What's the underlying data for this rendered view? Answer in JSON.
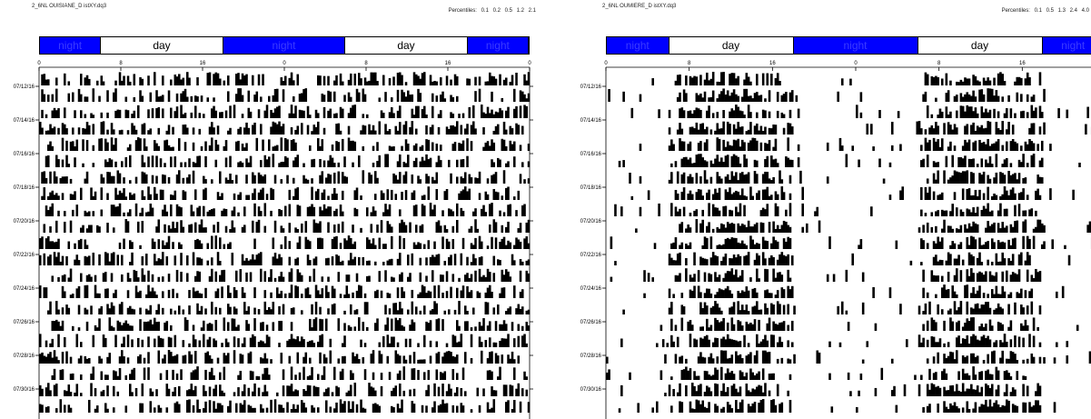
{
  "panels": [
    {
      "file_title": "2_6NL OUISIANE_D istXY.dq3",
      "percentiles_label": "Percentiles:",
      "percentiles": [
        "0.1",
        "0.2",
        "0.5",
        "1.2",
        "2.1"
      ],
      "daynight": [
        {
          "type": "night",
          "label": "night",
          "hours": 6
        },
        {
          "type": "day",
          "label": "day",
          "hours": 12
        },
        {
          "type": "night",
          "label": "night",
          "hours": 12
        },
        {
          "type": "day",
          "label": "day",
          "hours": 12
        },
        {
          "type": "night",
          "label": "night",
          "hours": 6
        }
      ]
    },
    {
      "file_title": "2_6NL OUMIERE_D istXY.dq3",
      "percentiles_label": "Percentiles:",
      "percentiles": [
        "0.1",
        "0.5",
        "1.3",
        "2.4",
        "4.0"
      ],
      "daynight": [
        {
          "type": "night",
          "label": "night",
          "hours": 6
        },
        {
          "type": "day",
          "label": "day",
          "hours": 12
        },
        {
          "type": "night",
          "label": "night",
          "hours": 12
        },
        {
          "type": "day",
          "label": "day",
          "hours": 12
        },
        {
          "type": "night",
          "label": "night",
          "hours": 6
        }
      ]
    }
  ],
  "chart_data": [
    {
      "type": "actogram",
      "x_ticks": [
        "0",
        "8",
        "16",
        "0",
        "8",
        "16",
        "0"
      ],
      "xlim": [
        0,
        48
      ],
      "y_labels": [
        "07/12/16",
        "07/14/16",
        "07/16/16",
        "07/18/16",
        "07/20/16",
        "07/22/16",
        "07/24/16",
        "07/26/16",
        "07/28/16",
        "07/30/16"
      ],
      "rows": 21,
      "pattern": "random-activity"
    },
    {
      "type": "actogram",
      "x_ticks": [
        "0",
        "8",
        "16",
        "0",
        "8",
        "16",
        "0"
      ],
      "xlim": [
        0,
        48
      ],
      "y_labels": [
        "07/12/16",
        "07/14/16",
        "07/16/16",
        "07/18/16",
        "07/20/16",
        "07/22/16",
        "07/24/16",
        "07/26/16",
        "07/28/16",
        "07/30/16"
      ],
      "rows": 21,
      "pattern": "day-active"
    }
  ]
}
